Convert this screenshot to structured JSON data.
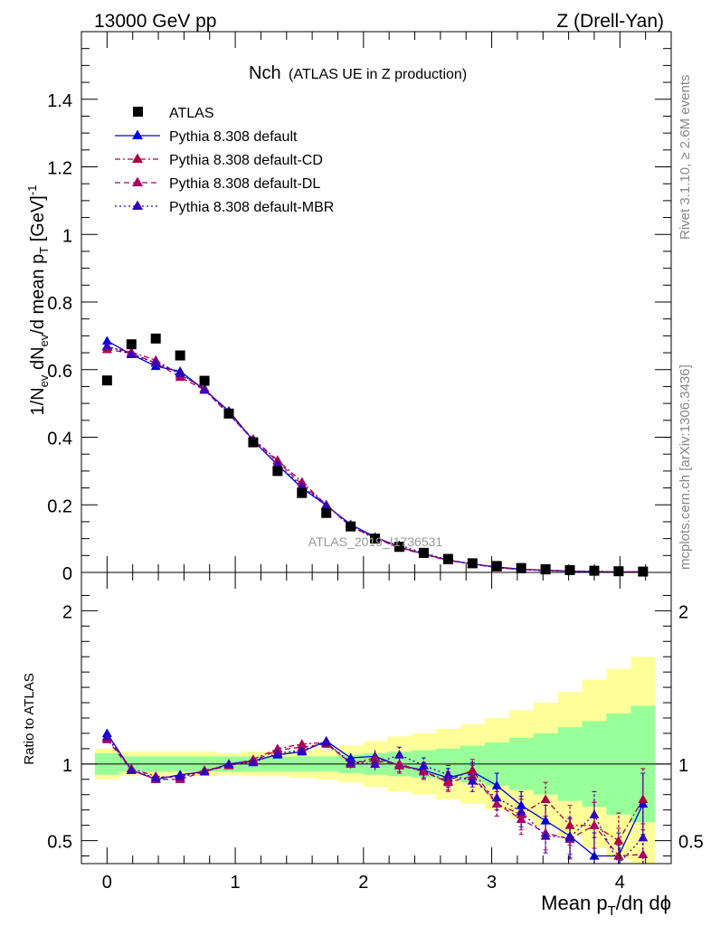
{
  "header": {
    "left_title": "13000 GeV pp",
    "right_title": "Z (Drell-Yan)"
  },
  "plot_title": {
    "main": "Nch",
    "sub": "(ATLAS UE in Z production)"
  },
  "side_labels": {
    "rivet": "Rivet 3.1.10, ≥ 2.6M events",
    "mcplots": "mcplots.cern.ch [arXiv:1306.3436]"
  },
  "watermark": "ATLAS_2019_I1736531",
  "colors": {
    "data": "#000000",
    "default": "#0000dd",
    "cd": "#aa0044",
    "dl": "#aa0066",
    "mbr": "#3300bb",
    "band_inner": "#99ff99",
    "band_outer": "#ffff99"
  },
  "chart_data": [
    {
      "type": "scatter",
      "panel": "main",
      "ylabel": "1/N_ev dN_ev/d mean p_T [GeV]^-1",
      "ylabel_parts": {
        "a": "1/N",
        "b": "ev",
        "c": " dN",
        "d": "ev",
        "e": "/d mean p",
        "f": "T",
        "g": " [GeV]",
        "h": "-1"
      },
      "xlim": [
        -0.2,
        4.4
      ],
      "ylim": [
        0,
        1.6
      ],
      "yticks": [
        0,
        0.2,
        0.4,
        0.6,
        0.8,
        1,
        1.2,
        1.4
      ],
      "ytick_labels": [
        "0",
        "0.2",
        "0.4",
        "0.6",
        "0.8",
        "1",
        "1.2",
        "1.4"
      ],
      "x": [
        0,
        0.19,
        0.38,
        0.57,
        0.76,
        0.95,
        1.14,
        1.33,
        1.52,
        1.71,
        1.9,
        2.09,
        2.28,
        2.47,
        2.66,
        2.85,
        3.04,
        3.23,
        3.42,
        3.61,
        3.8,
        3.99,
        4.18
      ],
      "legend": [
        "ATLAS",
        "Pythia 8.308 default",
        "Pythia 8.308 default-CD",
        "Pythia 8.308 default-DL",
        "Pythia 8.308 default-MBR"
      ],
      "series": [
        {
          "name": "ATLAS",
          "values": [
            0.568,
            0.675,
            0.692,
            0.642,
            0.567,
            0.47,
            0.385,
            0.3,
            0.235,
            0.176,
            0.136,
            0.1,
            0.076,
            0.058,
            0.04,
            0.027,
            0.019,
            0.013,
            0.0095,
            0.0068,
            0.005,
            0.0035,
            0.0025
          ]
        },
        {
          "name": "Pythia 8.308 default",
          "values": [
            0.685,
            0.645,
            0.61,
            0.595,
            0.54,
            0.478,
            0.39,
            0.318,
            0.25,
            0.198,
            0.142,
            0.105,
            0.075,
            0.055,
            0.036,
            0.025,
            0.016,
            0.0095,
            0.006,
            0.0036,
            0.002,
            0.0014,
            0.0018
          ]
        },
        {
          "name": "Pythia 8.308 default-CD",
          "values": [
            0.667,
            0.652,
            0.628,
            0.585,
            0.545,
            0.47,
            0.395,
            0.332,
            0.268,
            0.2,
            0.135,
            0.104,
            0.075,
            0.054,
            0.036,
            0.026,
            0.014,
            0.009,
            0.0073,
            0.004,
            0.003,
            0.0017,
            0.0019
          ]
        },
        {
          "name": "Pythia 8.308 default-DL",
          "values": [
            0.66,
            0.648,
            0.62,
            0.578,
            0.54,
            0.468,
            0.392,
            0.328,
            0.26,
            0.2,
            0.138,
            0.102,
            0.072,
            0.054,
            0.035,
            0.025,
            0.014,
            0.0085,
            0.006,
            0.0035,
            0.003,
            0.0014,
            0.001
          ]
        },
        {
          "name": "Pythia 8.308 default-MBR",
          "values": [
            0.67,
            0.645,
            0.62,
            0.59,
            0.54,
            0.47,
            0.39,
            0.32,
            0.255,
            0.2,
            0.137,
            0.1,
            0.08,
            0.058,
            0.037,
            0.024,
            0.015,
            0.009,
            0.005,
            0.0035,
            0.0034,
            0.001,
            0.0013
          ]
        }
      ]
    },
    {
      "type": "line",
      "panel": "ratio",
      "ylabel": "Ratio to ATLAS",
      "xlabel": "Mean p_T/dη dϕ",
      "xlabel_parts": {
        "a": "Mean p",
        "b": "T",
        "c": "/dη dϕ"
      },
      "xlim": [
        -0.2,
        4.4
      ],
      "ylim": [
        0.35,
        2.25
      ],
      "yticks": [
        0.5,
        1,
        2
      ],
      "ytick_labels": [
        "0.5",
        "1",
        "2"
      ],
      "xticks": [
        0,
        1,
        2,
        3,
        4
      ],
      "xtick_labels": [
        "0",
        "1",
        "2",
        "3",
        "4"
      ],
      "x": [
        0,
        0.19,
        0.38,
        0.57,
        0.76,
        0.95,
        1.14,
        1.33,
        1.52,
        1.71,
        1.9,
        2.09,
        2.28,
        2.47,
        2.66,
        2.85,
        3.04,
        3.23,
        3.42,
        3.61,
        3.8,
        3.99,
        4.18
      ],
      "band_inner": [
        0.07,
        0.05,
        0.05,
        0.05,
        0.05,
        0.05,
        0.05,
        0.05,
        0.05,
        0.05,
        0.06,
        0.07,
        0.08,
        0.09,
        0.1,
        0.12,
        0.14,
        0.17,
        0.2,
        0.24,
        0.28,
        0.33,
        0.38
      ],
      "band_outer": [
        0.1,
        0.08,
        0.08,
        0.08,
        0.08,
        0.07,
        0.08,
        0.08,
        0.09,
        0.1,
        0.12,
        0.15,
        0.18,
        0.2,
        0.23,
        0.26,
        0.3,
        0.35,
        0.4,
        0.47,
        0.55,
        0.62,
        0.7
      ],
      "series": [
        {
          "name": "Pythia 8.308 default",
          "values": [
            1.2,
            0.96,
            0.9,
            0.93,
            0.95,
            1.0,
            1.02,
            1.06,
            1.08,
            1.15,
            1.04,
            1.05,
            0.99,
            0.96,
            0.91,
            0.95,
            0.86,
            0.73,
            0.63,
            0.53,
            0.4,
            0.4,
            0.74
          ],
          "errors": [
            0.02,
            0.01,
            0.01,
            0.01,
            0.01,
            0.01,
            0.01,
            0.015,
            0.02,
            0.02,
            0.03,
            0.04,
            0.05,
            0.05,
            0.06,
            0.06,
            0.08,
            0.09,
            0.1,
            0.12,
            0.15,
            0.15,
            0.2
          ]
        },
        {
          "name": "Pythia 8.308 default-CD",
          "values": [
            1.17,
            0.97,
            0.92,
            0.91,
            0.96,
            0.99,
            1.03,
            1.1,
            1.13,
            1.14,
            1.0,
            1.04,
            0.99,
            0.95,
            0.89,
            0.96,
            0.74,
            0.67,
            0.77,
            0.6,
            0.6,
            0.5,
            0.77
          ],
          "errors": [
            0.02,
            0.01,
            0.01,
            0.01,
            0.01,
            0.01,
            0.01,
            0.015,
            0.02,
            0.02,
            0.03,
            0.04,
            0.05,
            0.05,
            0.06,
            0.07,
            0.08,
            0.1,
            0.11,
            0.13,
            0.15,
            0.18,
            0.2
          ]
        },
        {
          "name": "Pythia 8.308 default-DL",
          "values": [
            1.16,
            0.96,
            0.9,
            0.9,
            0.95,
            0.99,
            1.02,
            1.09,
            1.11,
            1.13,
            1.01,
            1.02,
            1.0,
            0.95,
            0.88,
            0.92,
            0.74,
            0.64,
            0.55,
            0.51,
            0.6,
            0.4,
            0.41
          ],
          "errors": [
            0.02,
            0.01,
            0.01,
            0.01,
            0.01,
            0.01,
            0.01,
            0.015,
            0.02,
            0.02,
            0.03,
            0.04,
            0.05,
            0.05,
            0.06,
            0.07,
            0.08,
            0.1,
            0.11,
            0.13,
            0.15,
            0.18,
            0.2
          ]
        },
        {
          "name": "Pythia 8.308 default-MBR",
          "values": [
            1.18,
            0.96,
            0.91,
            0.92,
            0.95,
            1.0,
            1.01,
            1.07,
            1.09,
            1.14,
            1.01,
            1.0,
            1.06,
            0.99,
            0.93,
            0.89,
            0.78,
            0.69,
            0.53,
            0.52,
            0.67,
            0.29,
            0.52
          ],
          "errors": [
            0.02,
            0.01,
            0.01,
            0.01,
            0.01,
            0.01,
            0.01,
            0.015,
            0.02,
            0.02,
            0.03,
            0.04,
            0.05,
            0.05,
            0.06,
            0.07,
            0.08,
            0.1,
            0.11,
            0.13,
            0.15,
            0.18,
            0.2
          ]
        }
      ]
    }
  ]
}
